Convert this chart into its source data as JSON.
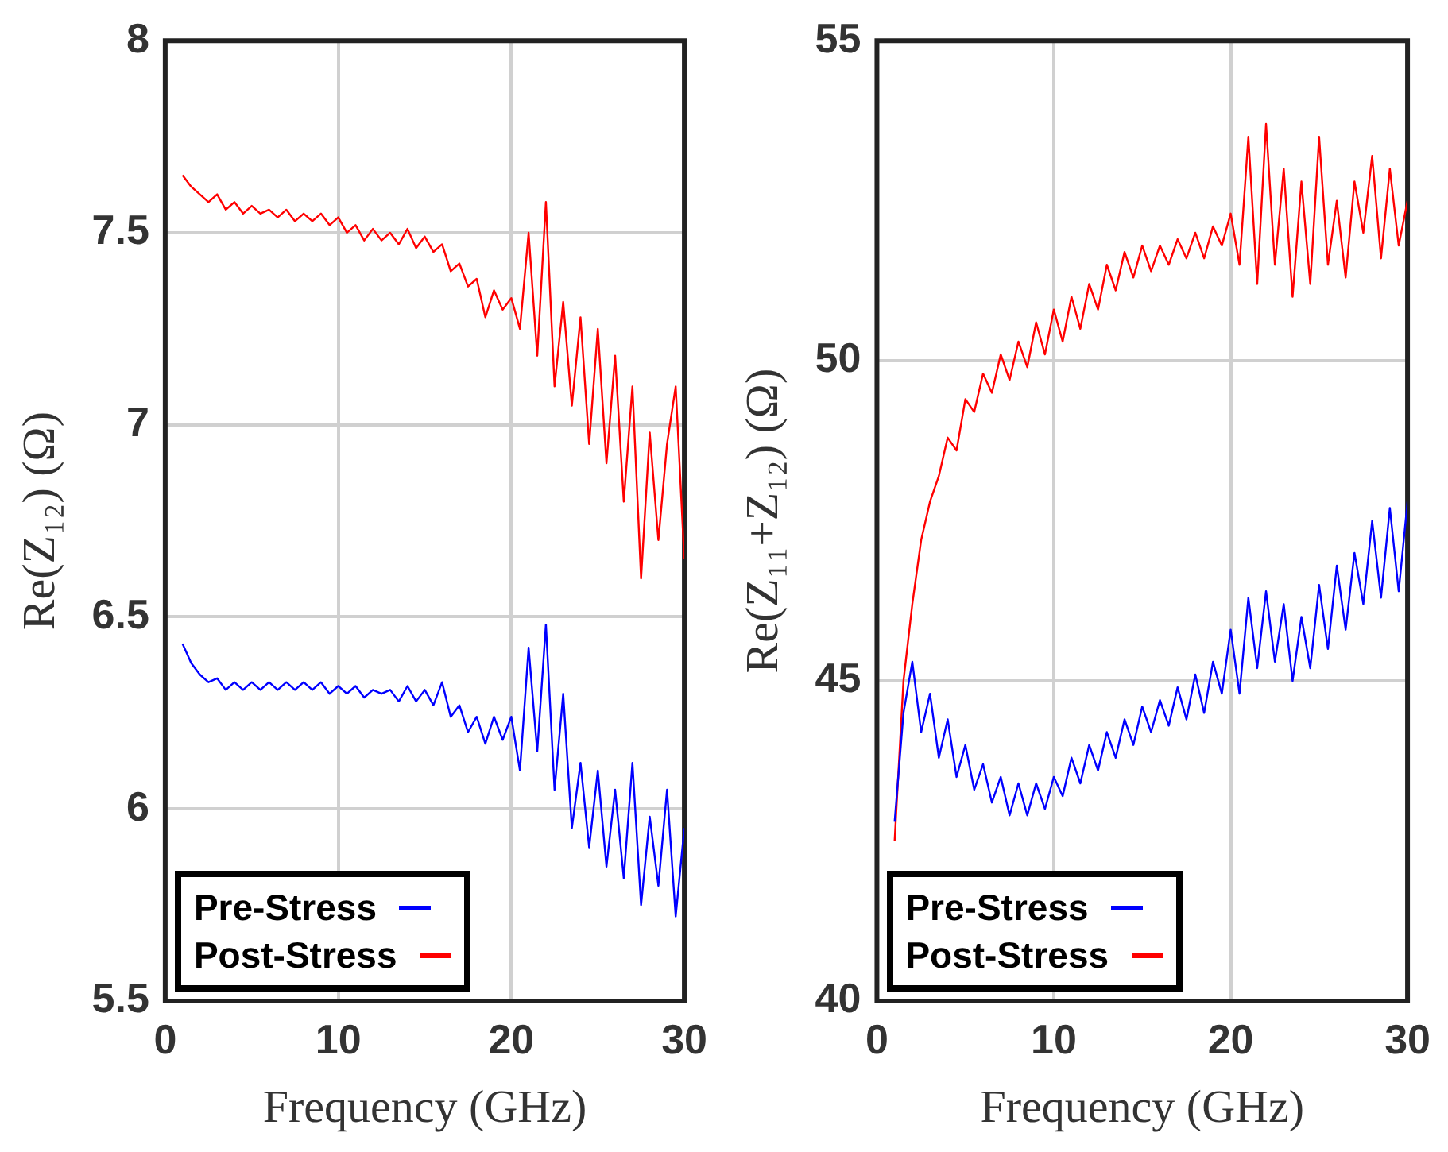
{
  "chart_data": [
    {
      "type": "line",
      "xlabel": "Frequency (GHz)",
      "ylabel": "Re(Z₁₂) (Ω)",
      "xlim": [
        0,
        30
      ],
      "xticks": [
        0,
        10,
        20,
        30
      ],
      "ylim": [
        5.5,
        8
      ],
      "yticks": [
        5.5,
        6,
        6.5,
        7,
        7.5,
        8
      ],
      "grid": true,
      "legend": "bottom left",
      "marker": "none",
      "line_style": "solid",
      "x": [
        1,
        1.5,
        2,
        2.5,
        3,
        3.5,
        4,
        4.5,
        5,
        5.5,
        6,
        6.5,
        7,
        7.5,
        8,
        8.5,
        9,
        9.5,
        10,
        10.5,
        11,
        11.5,
        12,
        12.5,
        13,
        13.5,
        14,
        14.5,
        15,
        15.5,
        16,
        16.5,
        17,
        17.5,
        18,
        18.5,
        19,
        19.5,
        20,
        20.5,
        21,
        21.5,
        22,
        22.5,
        23,
        23.5,
        24,
        24.5,
        25,
        25.5,
        26,
        26.5,
        27,
        27.5,
        28,
        28.5,
        29,
        29.5,
        30
      ],
      "series": [
        {
          "name": "Pre-Stress",
          "color": "#0000ff",
          "values": [
            6.43,
            6.38,
            6.35,
            6.33,
            6.34,
            6.31,
            6.33,
            6.31,
            6.33,
            6.31,
            6.33,
            6.31,
            6.33,
            6.31,
            6.33,
            6.31,
            6.33,
            6.3,
            6.32,
            6.3,
            6.32,
            6.29,
            6.31,
            6.3,
            6.31,
            6.28,
            6.32,
            6.28,
            6.31,
            6.27,
            6.33,
            6.24,
            6.27,
            6.2,
            6.24,
            6.17,
            6.24,
            6.18,
            6.24,
            6.1,
            6.42,
            6.15,
            6.48,
            6.05,
            6.3,
            5.95,
            6.12,
            5.9,
            6.1,
            5.85,
            6.05,
            5.82,
            6.12,
            5.75,
            5.98,
            5.8,
            6.05,
            5.72,
            5.95
          ]
        },
        {
          "name": "Post-Stress",
          "color": "#ff0000",
          "values": [
            7.65,
            7.62,
            7.6,
            7.58,
            7.6,
            7.56,
            7.58,
            7.55,
            7.57,
            7.55,
            7.56,
            7.54,
            7.56,
            7.53,
            7.55,
            7.53,
            7.55,
            7.52,
            7.54,
            7.5,
            7.52,
            7.48,
            7.51,
            7.48,
            7.5,
            7.47,
            7.51,
            7.46,
            7.49,
            7.45,
            7.47,
            7.4,
            7.42,
            7.36,
            7.38,
            7.28,
            7.35,
            7.3,
            7.33,
            7.25,
            7.5,
            7.18,
            7.58,
            7.1,
            7.32,
            7.05,
            7.28,
            6.95,
            7.25,
            6.9,
            7.18,
            6.8,
            7.1,
            6.6,
            6.98,
            6.7,
            6.95,
            7.1,
            6.65
          ]
        }
      ]
    },
    {
      "type": "line",
      "xlabel": "Frequency (GHz)",
      "ylabel": "Re(Z₁₁+Z₁₂) (Ω)",
      "xlim": [
        0,
        30
      ],
      "xticks": [
        0,
        10,
        20,
        30
      ],
      "ylim": [
        40,
        55
      ],
      "yticks": [
        40,
        45,
        50,
        55
      ],
      "grid": true,
      "legend": "bottom left",
      "marker": "none",
      "line_style": "solid",
      "x": [
        1,
        1.5,
        2,
        2.5,
        3,
        3.5,
        4,
        4.5,
        5,
        5.5,
        6,
        6.5,
        7,
        7.5,
        8,
        8.5,
        9,
        9.5,
        10,
        10.5,
        11,
        11.5,
        12,
        12.5,
        13,
        13.5,
        14,
        14.5,
        15,
        15.5,
        16,
        16.5,
        17,
        17.5,
        18,
        18.5,
        19,
        19.5,
        20,
        20.5,
        21,
        21.5,
        22,
        22.5,
        23,
        23.5,
        24,
        24.5,
        25,
        25.5,
        26,
        26.5,
        27,
        27.5,
        28,
        28.5,
        29,
        29.5,
        30
      ],
      "series": [
        {
          "name": "Pre-Stress",
          "color": "#0000ff",
          "values": [
            42.8,
            44.5,
            45.3,
            44.2,
            44.8,
            43.8,
            44.4,
            43.5,
            44,
            43.3,
            43.7,
            43.1,
            43.5,
            42.9,
            43.4,
            42.9,
            43.4,
            43,
            43.5,
            43.2,
            43.8,
            43.4,
            44,
            43.6,
            44.2,
            43.8,
            44.4,
            44,
            44.6,
            44.2,
            44.7,
            44.3,
            44.9,
            44.4,
            45.1,
            44.5,
            45.3,
            44.8,
            45.8,
            44.8,
            46.3,
            45.2,
            46.4,
            45.3,
            46.2,
            45,
            46,
            45.2,
            46.5,
            45.5,
            46.8,
            45.8,
            47,
            46.2,
            47.5,
            46.3,
            47.7,
            46.4,
            47.8
          ]
        },
        {
          "name": "Post-Stress",
          "color": "#ff0000",
          "values": [
            42.5,
            45,
            46.2,
            47.2,
            47.8,
            48.2,
            48.8,
            48.6,
            49.4,
            49.2,
            49.8,
            49.5,
            50.1,
            49.7,
            50.3,
            49.9,
            50.6,
            50.1,
            50.8,
            50.3,
            51,
            50.5,
            51.2,
            50.8,
            51.5,
            51.1,
            51.7,
            51.3,
            51.8,
            51.4,
            51.8,
            51.5,
            51.9,
            51.6,
            52,
            51.6,
            52.1,
            51.8,
            52.3,
            51.5,
            53.5,
            51.2,
            53.7,
            51.5,
            53,
            51,
            52.8,
            51.2,
            53.5,
            51.5,
            52.5,
            51.3,
            52.8,
            52,
            53.2,
            51.6,
            53,
            51.8,
            52.5
          ]
        }
      ]
    }
  ]
}
